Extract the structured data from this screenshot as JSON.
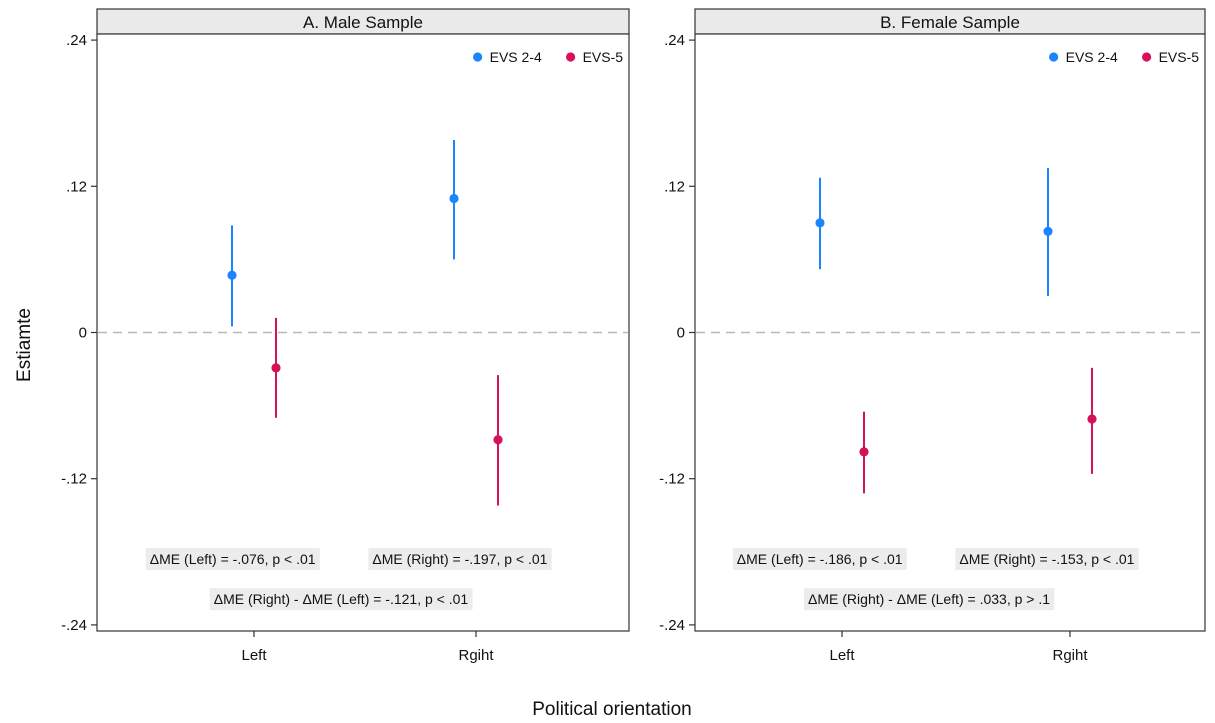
{
  "figure": {
    "ylabel": "Estiamte",
    "xlabel": "Political orientation"
  },
  "chart_data": [
    {
      "type": "scatter",
      "subtype": "point-estimate-with-confidence-intervals",
      "title": "A. Male Sample",
      "categories": [
        "Left",
        "Rgiht"
      ],
      "ylim": [
        -0.245,
        0.245
      ],
      "yticks": [
        0.24,
        0.12,
        0,
        -0.12,
        -0.24
      ],
      "yticklabels": [
        ".24",
        ".12",
        "0",
        "-.12",
        "-.24"
      ],
      "reference_line": 0,
      "grid": false,
      "legend_position": "top-right",
      "series": [
        {
          "name": "EVS 2-4",
          "color": "#1a85ff",
          "values": [
            0.047,
            0.11
          ],
          "ci_low": [
            0.005,
            0.06
          ],
          "ci_high": [
            0.088,
            0.158
          ]
        },
        {
          "name": "EVS-5",
          "color": "#d41159",
          "values": [
            -0.029,
            -0.088
          ],
          "ci_low": [
            -0.07,
            -0.142
          ],
          "ci_high": [
            0.012,
            -0.035
          ]
        }
      ],
      "annotations": [
        "ΔME (Left) = -.076, p < .01",
        "ΔME (Right) = -.197, p < .01",
        "ΔME (Right) - ΔME (Left) = -.121, p < .01"
      ]
    },
    {
      "type": "scatter",
      "subtype": "point-estimate-with-confidence-intervals",
      "title": "B. Female Sample",
      "categories": [
        "Left",
        "Rgiht"
      ],
      "ylim": [
        -0.245,
        0.245
      ],
      "yticks": [
        0.24,
        0.12,
        0,
        -0.12,
        -0.24
      ],
      "yticklabels": [
        ".24",
        ".12",
        "0",
        "-.12",
        "-.24"
      ],
      "reference_line": 0,
      "grid": false,
      "legend_position": "top-right",
      "series": [
        {
          "name": "EVS 2-4",
          "color": "#1a85ff",
          "values": [
            0.09,
            0.083
          ],
          "ci_low": [
            0.052,
            0.03
          ],
          "ci_high": [
            0.127,
            0.135
          ]
        },
        {
          "name": "EVS-5",
          "color": "#d41159",
          "values": [
            -0.098,
            -0.071
          ],
          "ci_low": [
            -0.132,
            -0.116
          ],
          "ci_high": [
            -0.065,
            -0.029
          ]
        }
      ],
      "annotations": [
        "ΔME (Left) = -.186, p < .01",
        "ΔME (Right) = -.153, p < .01",
        "ΔME (Right) - ΔME (Left) = .033, p > .1"
      ]
    }
  ]
}
